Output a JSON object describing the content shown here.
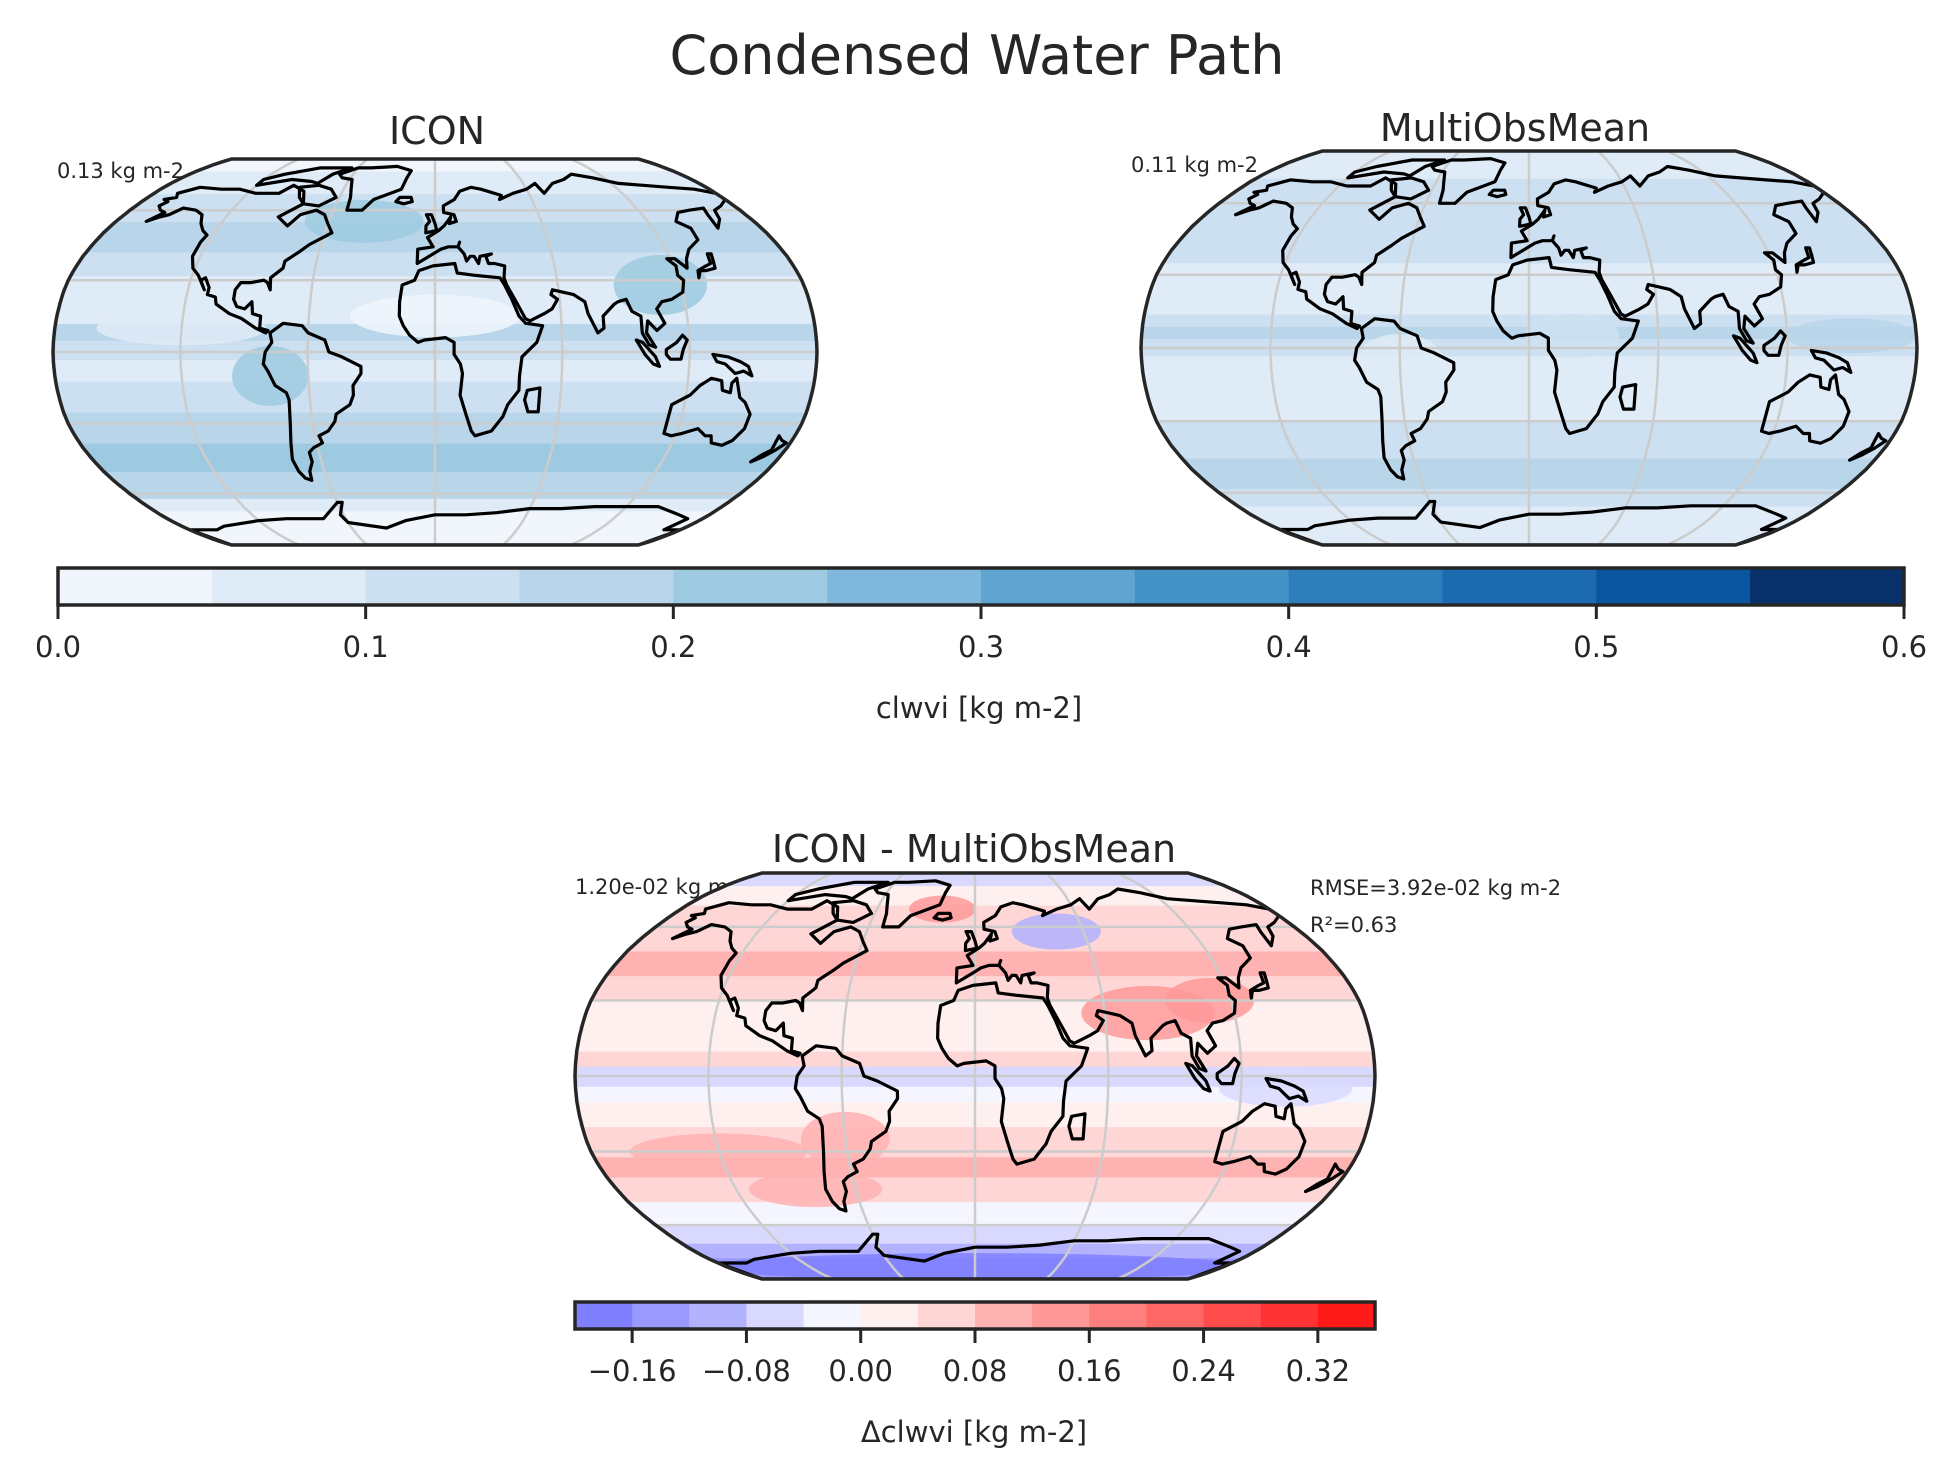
{
  "figure": {
    "title": "Condensed Water Path"
  },
  "panels": [
    {
      "id": "icon",
      "title": "ICON",
      "mean_text": "0.13 kg m-2"
    },
    {
      "id": "obs",
      "title": "MultiObsMean",
      "mean_text": "0.11 kg m-2"
    },
    {
      "id": "diff",
      "title": "ICON - MultiObsMean",
      "mean_text": "1.20e-02 kg m-2",
      "rmse_text": "RMSE=3.92e-02 kg m-2",
      "r2_text": "R²=0.63"
    }
  ],
  "colorbar_main": {
    "label": "clwvi [kg m-2]",
    "ticks": [
      "0.0",
      "0.1",
      "0.2",
      "0.3",
      "0.4",
      "0.5",
      "0.6"
    ],
    "range": [
      0.0,
      0.6
    ],
    "levels": 12,
    "colors": [
      "#f0f6fc",
      "#dfebf7",
      "#cde0f1",
      "#b8d5ea",
      "#9ecae1",
      "#7fb8da",
      "#60a5d2",
      "#4292c6",
      "#2e7ebc",
      "#1c6ab0",
      "#0b559f",
      "#08306b"
    ]
  },
  "colorbar_diff": {
    "label": "Δclwvi [kg m-2]",
    "ticks": [
      "−0.16",
      "−0.08",
      "0.00",
      "0.08",
      "0.16",
      "0.24",
      "0.32"
    ],
    "range": [
      -0.2,
      0.36
    ],
    "levels": 14,
    "colors": [
      "#7f7fff",
      "#9999ff",
      "#b2b2ff",
      "#d9d9ff",
      "#f5f5ff",
      "#fff0f0",
      "#ffd6d6",
      "#ffb2b2",
      "#ff9999",
      "#ff7f7f",
      "#ff6666",
      "#ff4c4c",
      "#ff3333",
      "#ff1a1a"
    ]
  },
  "chart_data": [
    {
      "type": "heatmap",
      "title": "ICON",
      "projection": "Robinson",
      "variable": "clwvi",
      "units": "kg m-2",
      "global_mean": 0.13,
      "value_range": [
        0.0,
        0.6
      ],
      "colormap": "Blues"
    },
    {
      "type": "heatmap",
      "title": "MultiObsMean",
      "projection": "Robinson",
      "variable": "clwvi",
      "units": "kg m-2",
      "global_mean": 0.11,
      "value_range": [
        0.0,
        0.6
      ],
      "colormap": "Blues"
    },
    {
      "type": "heatmap",
      "title": "ICON - MultiObsMean",
      "projection": "Robinson",
      "variable": "Δclwvi",
      "units": "kg m-2",
      "global_mean": 0.012,
      "rmse": 0.0392,
      "r2": 0.63,
      "value_range": [
        -0.2,
        0.36
      ],
      "colormap": "bwr"
    }
  ]
}
